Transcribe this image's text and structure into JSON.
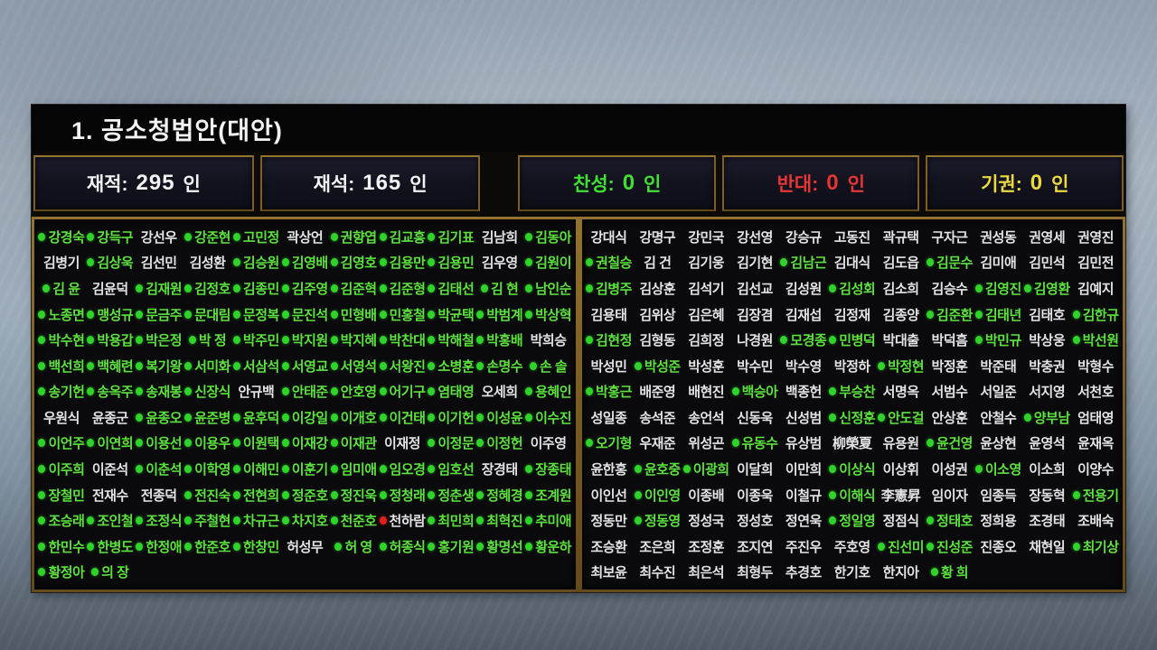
{
  "window": {
    "title": "1. 공소청법안(대안)"
  },
  "stats": {
    "items": [
      {
        "id": "jaejeok",
        "label": "재적",
        "value": "295",
        "unit": "인",
        "color": "#f2f2f4",
        "group": "left"
      },
      {
        "id": "jaeseok",
        "label": "재석",
        "value": "165",
        "unit": "인",
        "color": "#f2f2f4",
        "group": "left"
      },
      {
        "id": "chanseong",
        "label": "찬성",
        "value": "0",
        "unit": "인",
        "color": "#3fe032",
        "group": "right"
      },
      {
        "id": "bandae",
        "label": "반대",
        "value": "0",
        "unit": "인",
        "color": "#e53535",
        "group": "right"
      },
      {
        "id": "gigwon",
        "label": "기권",
        "value": "0",
        "unit": "인",
        "color": "#ecd93f",
        "group": "right"
      }
    ]
  },
  "legend": {
    "present_dot_color": "#2fd32a",
    "present_text_color": "#5ce13e",
    "absent_text_color": "#e3e3e5",
    "red_dot_color": "#e02020"
  },
  "panels": {
    "left": {
      "rows": [
        [
          [
            "g",
            "강경숙"
          ],
          [
            "g",
            "강득구"
          ],
          [
            "w",
            "강선우"
          ],
          [
            "g",
            "강준현"
          ],
          [
            "g",
            "고민정"
          ],
          [
            "w",
            "곽상언"
          ],
          [
            "g",
            "권향엽"
          ],
          [
            "g",
            "김교흥"
          ],
          [
            "g",
            "김기표"
          ],
          [
            "w",
            "김남희"
          ],
          [
            "g",
            "김동아"
          ]
        ],
        [
          [
            "w",
            "김병기"
          ],
          [
            "g",
            "김상욱"
          ],
          [
            "w",
            "김선민"
          ],
          [
            "w",
            "김성환"
          ],
          [
            "g",
            "김승원"
          ],
          [
            "g",
            "김영배"
          ],
          [
            "g",
            "김영호"
          ],
          [
            "g",
            "김용만"
          ],
          [
            "g",
            "김용민"
          ],
          [
            "w",
            "김우영"
          ],
          [
            "g",
            "김원이"
          ]
        ],
        [
          [
            "g",
            "김 윤"
          ],
          [
            "w",
            "김윤덕"
          ],
          [
            "g",
            "김재원"
          ],
          [
            "g",
            "김정호"
          ],
          [
            "g",
            "김종민"
          ],
          [
            "g",
            "김주영"
          ],
          [
            "g",
            "김준혁"
          ],
          [
            "g",
            "김준형"
          ],
          [
            "g",
            "김태선"
          ],
          [
            "g",
            "김 현"
          ],
          [
            "g",
            "남인순"
          ]
        ],
        [
          [
            "g",
            "노종면"
          ],
          [
            "g",
            "맹성규"
          ],
          [
            "g",
            "문금주"
          ],
          [
            "g",
            "문대림"
          ],
          [
            "g",
            "문정복"
          ],
          [
            "g",
            "문진석"
          ],
          [
            "g",
            "민형배"
          ],
          [
            "g",
            "민홍철"
          ],
          [
            "g",
            "박균택"
          ],
          [
            "g",
            "박범계"
          ],
          [
            "g",
            "박상혁"
          ]
        ],
        [
          [
            "g",
            "박수현"
          ],
          [
            "g",
            "박용갑"
          ],
          [
            "g",
            "박은정"
          ],
          [
            "g",
            "박 정"
          ],
          [
            "g",
            "박주민"
          ],
          [
            "g",
            "박지원"
          ],
          [
            "g",
            "박지혜"
          ],
          [
            "g",
            "박찬대"
          ],
          [
            "g",
            "박해철"
          ],
          [
            "g",
            "박홍배"
          ],
          [
            "w",
            "박희승"
          ]
        ],
        [
          [
            "g",
            "백선희"
          ],
          [
            "g",
            "백혜련"
          ],
          [
            "g",
            "복기왕"
          ],
          [
            "g",
            "서미화"
          ],
          [
            "g",
            "서삼석"
          ],
          [
            "g",
            "서영교"
          ],
          [
            "g",
            "서영석"
          ],
          [
            "g",
            "서왕진"
          ],
          [
            "g",
            "소병훈"
          ],
          [
            "g",
            "손명수"
          ],
          [
            "g",
            "손 솔"
          ]
        ],
        [
          [
            "g",
            "송기헌"
          ],
          [
            "g",
            "송옥주"
          ],
          [
            "g",
            "송재봉"
          ],
          [
            "g",
            "신장식"
          ],
          [
            "w",
            "안규백"
          ],
          [
            "g",
            "안태준"
          ],
          [
            "g",
            "안호영"
          ],
          [
            "g",
            "어기구"
          ],
          [
            "g",
            "염태영"
          ],
          [
            "w",
            "오세희"
          ],
          [
            "g",
            "용혜인"
          ]
        ],
        [
          [
            "w",
            "우원식"
          ],
          [
            "w",
            "윤종군"
          ],
          [
            "g",
            "윤종오"
          ],
          [
            "g",
            "윤준병"
          ],
          [
            "g",
            "윤후덕"
          ],
          [
            "g",
            "이강일"
          ],
          [
            "g",
            "이개호"
          ],
          [
            "g",
            "이건태"
          ],
          [
            "g",
            "이기헌"
          ],
          [
            "g",
            "이성윤"
          ],
          [
            "g",
            "이수진"
          ]
        ],
        [
          [
            "g",
            "이언주"
          ],
          [
            "g",
            "이연희"
          ],
          [
            "g",
            "이용선"
          ],
          [
            "g",
            "이용우"
          ],
          [
            "g",
            "이원택"
          ],
          [
            "g",
            "이재강"
          ],
          [
            "g",
            "이재관"
          ],
          [
            "w",
            "이재정"
          ],
          [
            "g",
            "이정문"
          ],
          [
            "g",
            "이정헌"
          ],
          [
            "w",
            "이주영"
          ]
        ],
        [
          [
            "g",
            "이주희"
          ],
          [
            "w",
            "이준석"
          ],
          [
            "g",
            "이춘석"
          ],
          [
            "g",
            "이학영"
          ],
          [
            "g",
            "이해민"
          ],
          [
            "g",
            "이훈기"
          ],
          [
            "g",
            "임미애"
          ],
          [
            "g",
            "임오경"
          ],
          [
            "g",
            "임호선"
          ],
          [
            "w",
            "장경태"
          ],
          [
            "g",
            "장종태"
          ]
        ],
        [
          [
            "g",
            "장철민"
          ],
          [
            "w",
            "전재수"
          ],
          [
            "w",
            "전종덕"
          ],
          [
            "g",
            "전진숙"
          ],
          [
            "g",
            "전현희"
          ],
          [
            "g",
            "정준호"
          ],
          [
            "g",
            "정진욱"
          ],
          [
            "g",
            "정청래"
          ],
          [
            "g",
            "정춘생"
          ],
          [
            "g",
            "정혜경"
          ],
          [
            "g",
            "조계원"
          ]
        ],
        [
          [
            "g",
            "조승래"
          ],
          [
            "g",
            "조인철"
          ],
          [
            "g",
            "조정식"
          ],
          [
            "g",
            "주철현"
          ],
          [
            "g",
            "차규근"
          ],
          [
            "g",
            "차지호"
          ],
          [
            "g",
            "천준호"
          ],
          [
            "r",
            "천하람"
          ],
          [
            "g",
            "최민희"
          ],
          [
            "g",
            "최혁진"
          ],
          [
            "g",
            "추미애"
          ]
        ],
        [
          [
            "g",
            "한민수"
          ],
          [
            "g",
            "한병도"
          ],
          [
            "g",
            "한정애"
          ],
          [
            "g",
            "한준호"
          ],
          [
            "g",
            "한창민"
          ],
          [
            "w",
            "허성무"
          ],
          [
            "g",
            "허 영"
          ],
          [
            "g",
            "허종식"
          ],
          [
            "g",
            "홍기원"
          ],
          [
            "g",
            "황명선"
          ],
          [
            "g",
            "황운하"
          ]
        ],
        [
          [
            "g",
            "황정아"
          ],
          [
            "g",
            "의 장"
          ]
        ]
      ]
    },
    "right": {
      "rows": [
        [
          [
            "w",
            "강대식"
          ],
          [
            "w",
            "강명구"
          ],
          [
            "w",
            "강민국"
          ],
          [
            "w",
            "강선영"
          ],
          [
            "w",
            "강승규"
          ],
          [
            "w",
            "고동진"
          ],
          [
            "w",
            "곽규택"
          ],
          [
            "w",
            "구자근"
          ],
          [
            "w",
            "권성동"
          ],
          [
            "w",
            "권영세"
          ],
          [
            "w",
            "권영진"
          ]
        ],
        [
          [
            "g",
            "권칠승"
          ],
          [
            "w",
            "김 건"
          ],
          [
            "w",
            "김기웅"
          ],
          [
            "w",
            "김기현"
          ],
          [
            "g",
            "김남근"
          ],
          [
            "w",
            "김대식"
          ],
          [
            "w",
            "김도읍"
          ],
          [
            "g",
            "김문수"
          ],
          [
            "w",
            "김미애"
          ],
          [
            "w",
            "김민석"
          ],
          [
            "w",
            "김민전"
          ]
        ],
        [
          [
            "g",
            "김병주"
          ],
          [
            "w",
            "김상훈"
          ],
          [
            "w",
            "김석기"
          ],
          [
            "w",
            "김선교"
          ],
          [
            "w",
            "김성원"
          ],
          [
            "g",
            "김성회"
          ],
          [
            "w",
            "김소희"
          ],
          [
            "w",
            "김승수"
          ],
          [
            "g",
            "김영진"
          ],
          [
            "g",
            "김영환"
          ],
          [
            "w",
            "김예지"
          ]
        ],
        [
          [
            "w",
            "김용태"
          ],
          [
            "w",
            "김위상"
          ],
          [
            "w",
            "김은혜"
          ],
          [
            "w",
            "김장겸"
          ],
          [
            "w",
            "김재섭"
          ],
          [
            "w",
            "김정재"
          ],
          [
            "w",
            "김종양"
          ],
          [
            "g",
            "김준환"
          ],
          [
            "g",
            "김태년"
          ],
          [
            "w",
            "김태호"
          ],
          [
            "g",
            "김한규"
          ]
        ],
        [
          [
            "g",
            "김현정"
          ],
          [
            "w",
            "김형동"
          ],
          [
            "w",
            "김희정"
          ],
          [
            "w",
            "나경원"
          ],
          [
            "g",
            "모경종"
          ],
          [
            "g",
            "민병덕"
          ],
          [
            "w",
            "박대출"
          ],
          [
            "w",
            "박덕흠"
          ],
          [
            "g",
            "박민규"
          ],
          [
            "w",
            "박상웅"
          ],
          [
            "g",
            "박선원"
          ]
        ],
        [
          [
            "w",
            "박성민"
          ],
          [
            "g",
            "박성준"
          ],
          [
            "w",
            "박성훈"
          ],
          [
            "w",
            "박수민"
          ],
          [
            "w",
            "박수영"
          ],
          [
            "w",
            "박정하"
          ],
          [
            "g",
            "박정현"
          ],
          [
            "w",
            "박정훈"
          ],
          [
            "w",
            "박준태"
          ],
          [
            "w",
            "박충권"
          ],
          [
            "w",
            "박형수"
          ]
        ],
        [
          [
            "g",
            "박홍근"
          ],
          [
            "w",
            "배준영"
          ],
          [
            "w",
            "배현진"
          ],
          [
            "g",
            "백승아"
          ],
          [
            "w",
            "백종헌"
          ],
          [
            "g",
            "부승찬"
          ],
          [
            "w",
            "서명옥"
          ],
          [
            "w",
            "서범수"
          ],
          [
            "w",
            "서일준"
          ],
          [
            "w",
            "서지영"
          ],
          [
            "w",
            "서천호"
          ]
        ],
        [
          [
            "w",
            "성일종"
          ],
          [
            "w",
            "송석준"
          ],
          [
            "w",
            "송언석"
          ],
          [
            "w",
            "신동욱"
          ],
          [
            "w",
            "신성범"
          ],
          [
            "g",
            "신정훈"
          ],
          [
            "g",
            "안도걸"
          ],
          [
            "w",
            "안상훈"
          ],
          [
            "w",
            "안철수"
          ],
          [
            "g",
            "양부남"
          ],
          [
            "w",
            "엄태영"
          ]
        ],
        [
          [
            "g",
            "오기형"
          ],
          [
            "w",
            "우재준"
          ],
          [
            "w",
            "위성곤"
          ],
          [
            "g",
            "유동수"
          ],
          [
            "w",
            "유상범"
          ],
          [
            "w",
            "柳榮夏"
          ],
          [
            "w",
            "유용원"
          ],
          [
            "g",
            "윤건영"
          ],
          [
            "w",
            "윤상현"
          ],
          [
            "w",
            "윤영석"
          ],
          [
            "w",
            "윤재옥"
          ]
        ],
        [
          [
            "w",
            "윤한홍"
          ],
          [
            "g",
            "윤호중"
          ],
          [
            "g",
            "이광희"
          ],
          [
            "w",
            "이달희"
          ],
          [
            "w",
            "이만희"
          ],
          [
            "g",
            "이상식"
          ],
          [
            "w",
            "이상휘"
          ],
          [
            "w",
            "이성권"
          ],
          [
            "g",
            "이소영"
          ],
          [
            "w",
            "이소희"
          ],
          [
            "w",
            "이양수"
          ]
        ],
        [
          [
            "w",
            "이인선"
          ],
          [
            "g",
            "이인영"
          ],
          [
            "w",
            "이종배"
          ],
          [
            "w",
            "이종욱"
          ],
          [
            "w",
            "이철규"
          ],
          [
            "g",
            "이해식"
          ],
          [
            "w",
            "李憲昇"
          ],
          [
            "w",
            "임이자"
          ],
          [
            "w",
            "임종득"
          ],
          [
            "w",
            "장동혁"
          ],
          [
            "g",
            "전용기"
          ]
        ],
        [
          [
            "w",
            "정동만"
          ],
          [
            "g",
            "정동영"
          ],
          [
            "w",
            "정성국"
          ],
          [
            "w",
            "정성호"
          ],
          [
            "w",
            "정연욱"
          ],
          [
            "g",
            "정일영"
          ],
          [
            "w",
            "정점식"
          ],
          [
            "g",
            "정태호"
          ],
          [
            "w",
            "정희용"
          ],
          [
            "w",
            "조경태"
          ],
          [
            "w",
            "조배숙"
          ]
        ],
        [
          [
            "w",
            "조승환"
          ],
          [
            "w",
            "조은희"
          ],
          [
            "w",
            "조정훈"
          ],
          [
            "w",
            "조지연"
          ],
          [
            "w",
            "주진우"
          ],
          [
            "w",
            "주호영"
          ],
          [
            "g",
            "진선미"
          ],
          [
            "g",
            "진성준"
          ],
          [
            "w",
            "진종오"
          ],
          [
            "w",
            "채현일"
          ],
          [
            "g",
            "최기상"
          ]
        ],
        [
          [
            "w",
            "최보윤"
          ],
          [
            "w",
            "최수진"
          ],
          [
            "w",
            "최은석"
          ],
          [
            "w",
            "최형두"
          ],
          [
            "w",
            "추경호"
          ],
          [
            "w",
            "한기호"
          ],
          [
            "w",
            "한지아"
          ],
          [
            "g",
            "황 희"
          ]
        ]
      ]
    }
  }
}
